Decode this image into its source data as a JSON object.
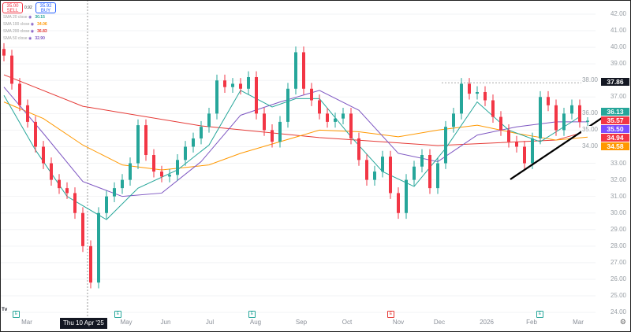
{
  "header": {
    "sell_price": "35.00",
    "sell_label": "SELL",
    "spread": "0.92",
    "buy_price": "35.92",
    "buy_label": "BUY"
  },
  "legend": [
    {
      "label": "SMA 20 close",
      "value": "30.15",
      "color": "#26a69a"
    },
    {
      "label": "SMA 100 close",
      "value": "34.06",
      "color": "#ff9800"
    },
    {
      "label": "SMA 200 close",
      "value": "36.83",
      "color": "#e53935"
    },
    {
      "label": "SMA 50 close",
      "value": "32.90",
      "color": "#7e57c2"
    }
  ],
  "crosshair_date": "Thu 10 Apr '25",
  "months": [
    "Mar",
    "May",
    "Jun",
    "Jul",
    "Aug",
    "Sep",
    "Oct",
    "Nov",
    "Dec",
    "2026",
    "Feb",
    "Mar"
  ],
  "earnings": [
    {
      "label": "E",
      "color": "#26a69a"
    },
    {
      "label": "E",
      "color": "#26a69a"
    },
    {
      "label": "E",
      "color": "#26a69a"
    },
    {
      "label": "E",
      "color": "#e53935"
    },
    {
      "label": "E",
      "color": "#26a69a"
    }
  ],
  "price_tags": [
    {
      "value": "37.86",
      "color": "#131722"
    },
    {
      "value": "36.13",
      "color": "#26a69a"
    },
    {
      "value": "35.57",
      "color": "#f23645"
    },
    {
      "value": "35.50",
      "color": "#7c4dff"
    },
    {
      "value": "34.94",
      "color": "#f23645"
    },
    {
      "value": "34.58",
      "color": "#ff9800"
    }
  ],
  "chart_data": {
    "type": "candlestick",
    "ylim": [
      24,
      42
    ],
    "y_ticks": [
      "42.00",
      "41.00",
      "40.00",
      "39.00",
      "38.00",
      "37.00",
      "36.00",
      "35.00",
      "34.00",
      "33.00",
      "32.00",
      "31.00",
      "30.00",
      "29.00",
      "28.00",
      "27.00",
      "26.00",
      "25.00",
      "24.00"
    ],
    "closes": [
      39.5,
      37.8,
      36.5,
      35.5,
      34,
      33,
      32,
      31.5,
      31.2,
      30,
      28,
      25.8,
      30,
      31,
      31.5,
      32,
      33,
      35.3,
      33.5,
      32.5,
      32.2,
      32.3,
      33.2,
      34,
      34.5,
      35.2,
      36,
      38,
      37.6,
      37.8,
      37.5,
      38.2,
      36,
      35,
      34.3,
      35.5,
      37.5,
      39.7,
      37.5,
      36.8,
      36,
      35.5,
      35.7,
      36,
      34.5,
      33.2,
      32,
      32.5,
      33.4,
      31.2,
      30,
      32,
      32.8,
      33.5,
      31.5,
      33,
      35.2,
      36,
      37.8,
      37.2,
      37.3,
      36.8,
      35.8,
      35,
      34.3,
      34,
      33,
      34.5,
      37,
      36.5,
      35,
      36,
      36.5,
      35.5,
      35.57
    ],
    "moving_averages": [
      {
        "name": "SMA 200",
        "color": "#e53935",
        "points": [
          [
            0,
            38.34
          ],
          [
            10,
            36.44
          ],
          [
            25,
            35.26
          ],
          [
            40,
            34.55
          ],
          [
            55,
            34.07
          ],
          [
            70,
            34.4
          ],
          [
            74,
            34.94
          ]
        ]
      },
      {
        "name": "SMA 100",
        "color": "#ff9800",
        "points": [
          [
            0,
            36.7
          ],
          [
            5,
            35.7
          ],
          [
            10,
            34.1
          ],
          [
            15,
            32.9
          ],
          [
            20,
            32.6
          ],
          [
            26,
            32.9
          ],
          [
            30,
            33.6
          ],
          [
            35,
            34.3
          ],
          [
            40,
            35.0
          ],
          [
            45,
            34.9
          ],
          [
            50,
            34.6
          ],
          [
            55,
            35.0
          ],
          [
            60,
            35.3
          ],
          [
            65,
            34.8
          ],
          [
            70,
            34.4
          ],
          [
            74,
            34.58
          ]
        ]
      },
      {
        "name": "SMA 50",
        "color": "#7e57c2",
        "points": [
          [
            0,
            37.6
          ],
          [
            5,
            34.8
          ],
          [
            10,
            31.9
          ],
          [
            15,
            31.0
          ],
          [
            20,
            31.2
          ],
          [
            25,
            33.1
          ],
          [
            30,
            35.9
          ],
          [
            35,
            36.7
          ],
          [
            40,
            37.4
          ],
          [
            45,
            36.2
          ],
          [
            50,
            33.6
          ],
          [
            55,
            33.1
          ],
          [
            60,
            34.7
          ],
          [
            65,
            35.2
          ],
          [
            70,
            35.5
          ],
          [
            74,
            35.5
          ]
        ]
      },
      {
        "name": "SMA 20",
        "color": "#26a69a",
        "points": [
          [
            0,
            37.1
          ],
          [
            4,
            33.8
          ],
          [
            8,
            31.0
          ],
          [
            13,
            29.6
          ],
          [
            17,
            31.5
          ],
          [
            22,
            32.6
          ],
          [
            26,
            34.1
          ],
          [
            30,
            37.4
          ],
          [
            34,
            36.4
          ],
          [
            37,
            36.9
          ],
          [
            40,
            36.9
          ],
          [
            44,
            34.6
          ],
          [
            48,
            32.5
          ],
          [
            52,
            31.6
          ],
          [
            56,
            33.9
          ],
          [
            60,
            36.7
          ],
          [
            64,
            35.0
          ],
          [
            68,
            34.3
          ],
          [
            72,
            35.5
          ],
          [
            74,
            36.13
          ]
        ]
      }
    ],
    "trendline": [
      [
        64.2,
        32.03
      ],
      [
        75.8,
        35.73
      ]
    ],
    "reference_line": 37.86
  }
}
